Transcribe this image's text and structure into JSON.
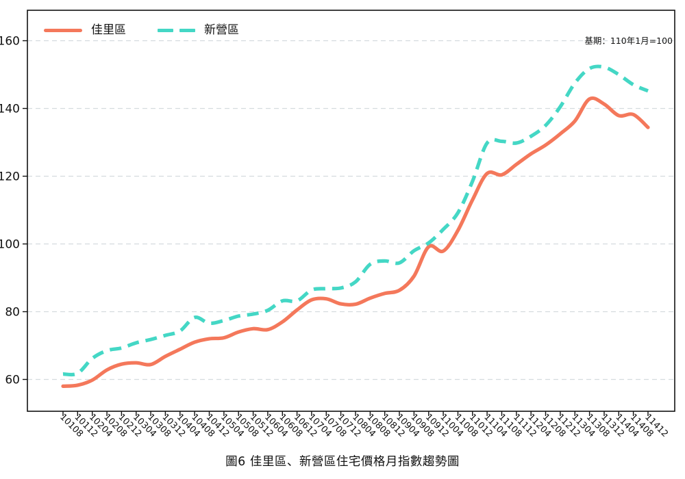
{
  "chart_data": {
    "type": "line",
    "title": "圖6  佳里區、新營區住宅價格月指數趨勢圖",
    "note": "基期：110年1月=100",
    "x_labels": [
      "10108",
      "10112",
      "10204",
      "10208",
      "10212",
      "10304",
      "10308",
      "10312",
      "10404",
      "10408",
      "10412",
      "10504",
      "10508",
      "10512",
      "10604",
      "10608",
      "10612",
      "10704",
      "10708",
      "10712",
      "10804",
      "10808",
      "10812",
      "10904",
      "10908",
      "10912",
      "11004",
      "11008",
      "11012",
      "11104",
      "11108",
      "11112",
      "11204",
      "11208",
      "11212",
      "11304",
      "11308",
      "11312",
      "11404",
      "11408",
      "11412"
    ],
    "series": [
      {
        "name": "佳里區",
        "color": "#F4785B",
        "style": "solid",
        "values": [
          58.0,
          58.3,
          59.8,
          62.8,
          64.5,
          64.9,
          64.4,
          66.8,
          68.9,
          71.0,
          72.0,
          72.3,
          74.0,
          75.0,
          74.7,
          77.0,
          80.5,
          83.5,
          83.8,
          82.3,
          82.2,
          84.0,
          85.4,
          86.3,
          90.5,
          99.2,
          97.9,
          104.0,
          113.0,
          120.8,
          120.4,
          123.5,
          126.6,
          129.2,
          132.5,
          136.3,
          142.8,
          141.3,
          137.9,
          138.2,
          134.4
        ]
      },
      {
        "name": "新營區",
        "color": "#44D7C5",
        "style": "dashed",
        "values": [
          61.6,
          61.8,
          66.2,
          68.5,
          69.3,
          70.8,
          71.8,
          73.0,
          74.3,
          78.3,
          76.6,
          77.4,
          78.7,
          79.3,
          80.4,
          83.2,
          83.2,
          86.4,
          86.8,
          87.0,
          88.8,
          94.0,
          95.0,
          94.4,
          98.0,
          100.3,
          104.3,
          109.2,
          118.5,
          129.8,
          130.3,
          129.8,
          131.8,
          135.0,
          140.5,
          147.5,
          151.8,
          152.2,
          150.0,
          147.0,
          145.2
        ]
      }
    ],
    "yticks": [
      60,
      80,
      100,
      120,
      140,
      160
    ],
    "ylim": [
      50.6,
      169
    ],
    "grid": "horizontal-dashed",
    "legend_position": "top-left-inside",
    "colors": {
      "axis": "#111111",
      "gridline": "#d4dbde",
      "tick_text": "#111111"
    }
  }
}
